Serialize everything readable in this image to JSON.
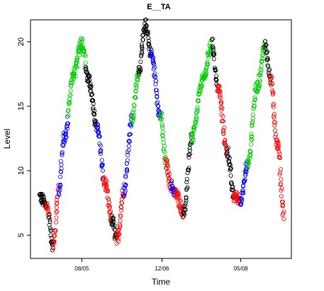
{
  "chart_data": {
    "type": "scatter",
    "title": "E__TA",
    "xlabel": "Time",
    "ylabel": "Level",
    "ylim": [
      3.2,
      21.7
    ],
    "y_ticks": [
      "5",
      "10",
      "15",
      "20"
    ],
    "y_tick_values": [
      5,
      10,
      15,
      20
    ],
    "x_tick_labels": [
      "08/05",
      "12/06",
      "05/08"
    ],
    "x_tick_indices": [
      62,
      180,
      296
    ],
    "n_points": 360,
    "marker": "open-circle",
    "grid": false,
    "legend": "none",
    "colors": {
      "black": "#000000",
      "blue": "#0000ff",
      "green": "#00cc00",
      "red": "#ff0000"
    },
    "segments": [
      {
        "color": "black",
        "start": 0,
        "end": 10
      },
      {
        "color": "red",
        "start": 10,
        "end": 14
      },
      {
        "color": "black",
        "start": 14,
        "end": 20
      },
      {
        "color": "red",
        "start": 20,
        "end": 28
      },
      {
        "color": "blue",
        "start": 28,
        "end": 42
      },
      {
        "color": "green",
        "start": 42,
        "end": 68
      },
      {
        "color": "black",
        "start": 68,
        "end": 84
      },
      {
        "color": "blue",
        "start": 84,
        "end": 94
      },
      {
        "color": "red",
        "start": 94,
        "end": 106
      },
      {
        "color": "black",
        "start": 106,
        "end": 114
      },
      {
        "color": "red",
        "start": 114,
        "end": 124
      },
      {
        "color": "blue",
        "start": 124,
        "end": 136
      },
      {
        "color": "green",
        "start": 136,
        "end": 146
      },
      {
        "color": "black",
        "start": 146,
        "end": 164
      },
      {
        "color": "blue",
        "start": 164,
        "end": 178
      },
      {
        "color": "green",
        "start": 178,
        "end": 186
      },
      {
        "color": "red",
        "start": 186,
        "end": 194
      },
      {
        "color": "blue",
        "start": 194,
        "end": 200
      },
      {
        "color": "red",
        "start": 200,
        "end": 212
      },
      {
        "color": "black",
        "start": 212,
        "end": 224
      },
      {
        "color": "green",
        "start": 224,
        "end": 254
      },
      {
        "color": "black",
        "start": 254,
        "end": 262
      },
      {
        "color": "red",
        "start": 262,
        "end": 276
      },
      {
        "color": "black",
        "start": 276,
        "end": 286
      },
      {
        "color": "red",
        "start": 286,
        "end": 296
      },
      {
        "color": "blue",
        "start": 296,
        "end": 306
      },
      {
        "color": "green",
        "start": 306,
        "end": 332
      },
      {
        "color": "black",
        "start": 332,
        "end": 340
      },
      {
        "color": "red",
        "start": 340,
        "end": 360
      }
    ],
    "waypoints": [
      [
        0,
        8.0
      ],
      [
        10,
        7.3
      ],
      [
        20,
        4.2
      ],
      [
        28,
        8.5
      ],
      [
        36,
        12.5
      ],
      [
        50,
        17.5
      ],
      [
        62,
        20.0
      ],
      [
        72,
        17.0
      ],
      [
        84,
        13.5
      ],
      [
        96,
        9.0
      ],
      [
        106,
        6.2
      ],
      [
        114,
        4.6
      ],
      [
        124,
        8.5
      ],
      [
        136,
        14.0
      ],
      [
        146,
        17.8
      ],
      [
        156,
        21.3
      ],
      [
        164,
        19.0
      ],
      [
        178,
        14.2
      ],
      [
        186,
        10.5
      ],
      [
        194,
        8.8
      ],
      [
        200,
        8.2
      ],
      [
        212,
        6.8
      ],
      [
        224,
        12.5
      ],
      [
        240,
        17.0
      ],
      [
        254,
        19.8
      ],
      [
        262,
        16.5
      ],
      [
        276,
        11.5
      ],
      [
        286,
        8.0
      ],
      [
        296,
        7.8
      ],
      [
        306,
        10.5
      ],
      [
        320,
        16.5
      ],
      [
        332,
        19.8
      ],
      [
        340,
        17.0
      ],
      [
        350,
        12.0
      ],
      [
        360,
        6.5
      ]
    ]
  }
}
